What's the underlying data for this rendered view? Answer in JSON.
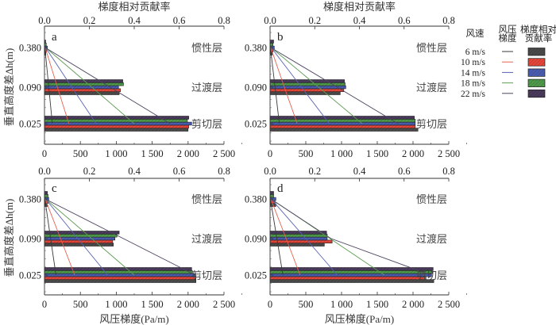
{
  "chart_data": {
    "type": "bar",
    "description_labels": {
      "top_axis_title": "梯度相对贡献率",
      "bottom_axis_title": "风压梯度(Pa/m)",
      "y_axis_title": "垂直高度差Δh(m)"
    },
    "top_axis": {
      "label": "梯度相对贡献率",
      "range": [
        0,
        0.8
      ],
      "ticks": [
        "0.0",
        "0.2",
        "0.4",
        "0.6",
        "0.8"
      ]
    },
    "bottom_axis": {
      "label": "风压梯度(Pa/m)",
      "range": [
        0,
        2500
      ],
      "ticks": [
        "0",
        "500",
        "1 000",
        "1 500",
        "2 000",
        "2 500"
      ]
    },
    "y_axis": {
      "label": "垂直高度差Δh(m)",
      "categories": [
        "0.380",
        "0.090",
        "0.025"
      ]
    },
    "layer_labels": [
      "惯性层",
      "过渡层",
      "剪切层"
    ],
    "legend": {
      "header_speed": "风速",
      "header_gradient": "风压梯度",
      "header_rate": "梯度相对贡献率",
      "series": [
        {
          "name": "6 m/s",
          "line_color": "#3a3a3a",
          "bar_color": "#4a4a4a"
        },
        {
          "name": "10 m/s",
          "line_color": "#e8604f",
          "bar_color": "#e5473a"
        },
        {
          "name": "14 m/s",
          "line_color": "#5862b3",
          "bar_color": "#4b5db0"
        },
        {
          "name": "18 m/s",
          "line_color": "#5f9c55",
          "bar_color": "#4f9a4a"
        },
        {
          "name": "22 m/s",
          "line_color": "#4d4360",
          "bar_color": "#4a3a5c"
        }
      ]
    },
    "panels": [
      {
        "letter": "a",
        "gradient_lines": [
          [
            5,
            60,
            110
          ],
          [
            10,
            180,
            340
          ],
          [
            15,
            380,
            720
          ],
          [
            15,
            660,
            1250
          ],
          [
            10,
            915,
            1750
          ]
        ],
        "contribution_bars": [
          [
            0.006,
            0.333,
            0.64
          ],
          [
            0.01,
            0.339,
            0.643
          ],
          [
            0.013,
            0.33,
            0.656
          ],
          [
            0.008,
            0.352,
            0.637
          ],
          [
            0.005,
            0.349,
            0.643
          ]
        ]
      },
      {
        "letter": "b",
        "gradient_lines": [
          [
            5,
            70,
            130
          ],
          [
            10,
            200,
            380
          ],
          [
            15,
            440,
            830
          ],
          [
            15,
            680,
            1290
          ],
          [
            10,
            940,
            1790
          ]
        ],
        "contribution_bars": [
          [
            0.01,
            0.314,
            0.662
          ],
          [
            0.013,
            0.33,
            0.65
          ],
          [
            0.019,
            0.339,
            0.65
          ],
          [
            0.013,
            0.336,
            0.65
          ],
          [
            0.016,
            0.333,
            0.646
          ]
        ]
      },
      {
        "letter": "c",
        "gradient_lines": [
          [
            5,
            85,
            160
          ],
          [
            10,
            225,
            420
          ],
          [
            15,
            465,
            880
          ],
          [
            15,
            660,
            1250
          ],
          [
            10,
            1100,
            2100
          ]
        ],
        "contribution_bars": [
          [
            0.013,
            0.307,
            0.675
          ],
          [
            0.016,
            0.304,
            0.675
          ],
          [
            0.019,
            0.314,
            0.672
          ],
          [
            0.016,
            0.323,
            0.659
          ],
          [
            0.013,
            0.333,
            0.656
          ]
        ]
      },
      {
        "letter": "d",
        "gradient_lines": [
          [
            5,
            95,
            180
          ],
          [
            10,
            225,
            420
          ],
          [
            15,
            500,
            940
          ],
          [
            15,
            840,
            1600
          ],
          [
            10,
            855,
            2250
          ]
        ],
        "contribution_bars": [
          [
            0.026,
            0.243,
            0.733
          ],
          [
            0.022,
            0.278,
            0.698
          ],
          [
            0.026,
            0.256,
            0.723
          ],
          [
            0.016,
            0.256,
            0.726
          ],
          [
            0.016,
            0.253,
            0.73
          ]
        ]
      }
    ]
  }
}
